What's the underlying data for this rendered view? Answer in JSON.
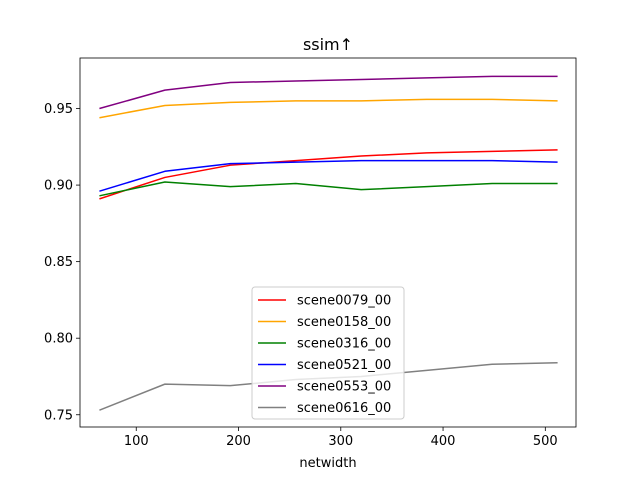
{
  "chart_data": {
    "type": "line",
    "title": "ssim↑",
    "xlabel": "netwidth",
    "ylabel": "",
    "xlim": [
      45,
      530
    ],
    "ylim": [
      0.742,
      0.983
    ],
    "xticks": [
      100,
      200,
      300,
      400,
      500
    ],
    "yticks": [
      0.75,
      0.8,
      0.85,
      0.9,
      0.95
    ],
    "ytick_labels": [
      "0.75",
      "0.80",
      "0.85",
      "0.90",
      "0.95"
    ],
    "grid": false,
    "legend_position": "lower-center",
    "x": [
      64,
      128,
      192,
      256,
      320,
      384,
      448,
      512
    ],
    "series": [
      {
        "name": "scene0079_00",
        "color": "#ff0000",
        "values": [
          0.891,
          0.905,
          0.913,
          0.916,
          0.919,
          0.921,
          0.922,
          0.923
        ]
      },
      {
        "name": "scene0158_00",
        "color": "#ffa500",
        "values": [
          0.944,
          0.952,
          0.954,
          0.955,
          0.955,
          0.956,
          0.956,
          0.955
        ]
      },
      {
        "name": "scene0316_00",
        "color": "#008000",
        "values": [
          0.893,
          0.902,
          0.899,
          0.901,
          0.897,
          0.899,
          0.901,
          0.901
        ]
      },
      {
        "name": "scene0521_00",
        "color": "#0000ff",
        "values": [
          0.896,
          0.909,
          0.914,
          0.915,
          0.916,
          0.916,
          0.916,
          0.915
        ]
      },
      {
        "name": "scene0553_00",
        "color": "#800080",
        "values": [
          0.95,
          0.962,
          0.967,
          0.968,
          0.969,
          0.97,
          0.971,
          0.971
        ]
      },
      {
        "name": "scene0616_00",
        "color": "#808080",
        "values": [
          0.753,
          0.77,
          0.769,
          0.773,
          0.775,
          0.779,
          0.783,
          0.784
        ]
      }
    ]
  }
}
